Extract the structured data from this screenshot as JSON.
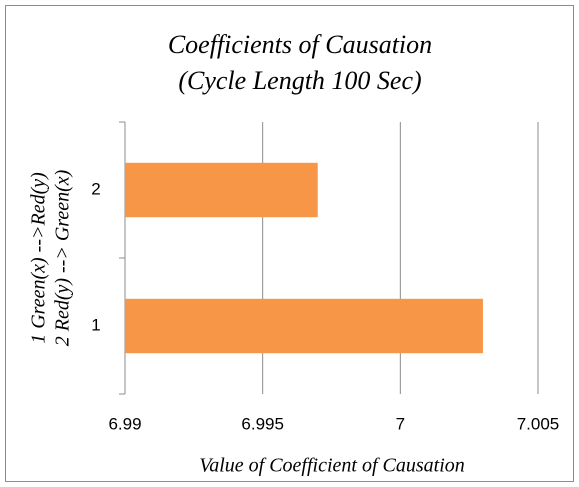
{
  "chart_data": {
    "type": "barh",
    "title": [
      "Coefficients of Causation",
      "(Cycle Length 100 Sec)"
    ],
    "categories": [
      "1",
      "2"
    ],
    "values": [
      7.003,
      6.997
    ],
    "color": "#f79646",
    "xlabel": "Value of Coefficient of Causation",
    "ylabel": [
      "1 Green(x) -->Red(y)",
      "2 Red(y) --> Green(x)"
    ],
    "xlim": [
      6.99,
      7.005
    ],
    "xticks": [
      6.99,
      6.995,
      7,
      7.005
    ],
    "grid": true
  }
}
